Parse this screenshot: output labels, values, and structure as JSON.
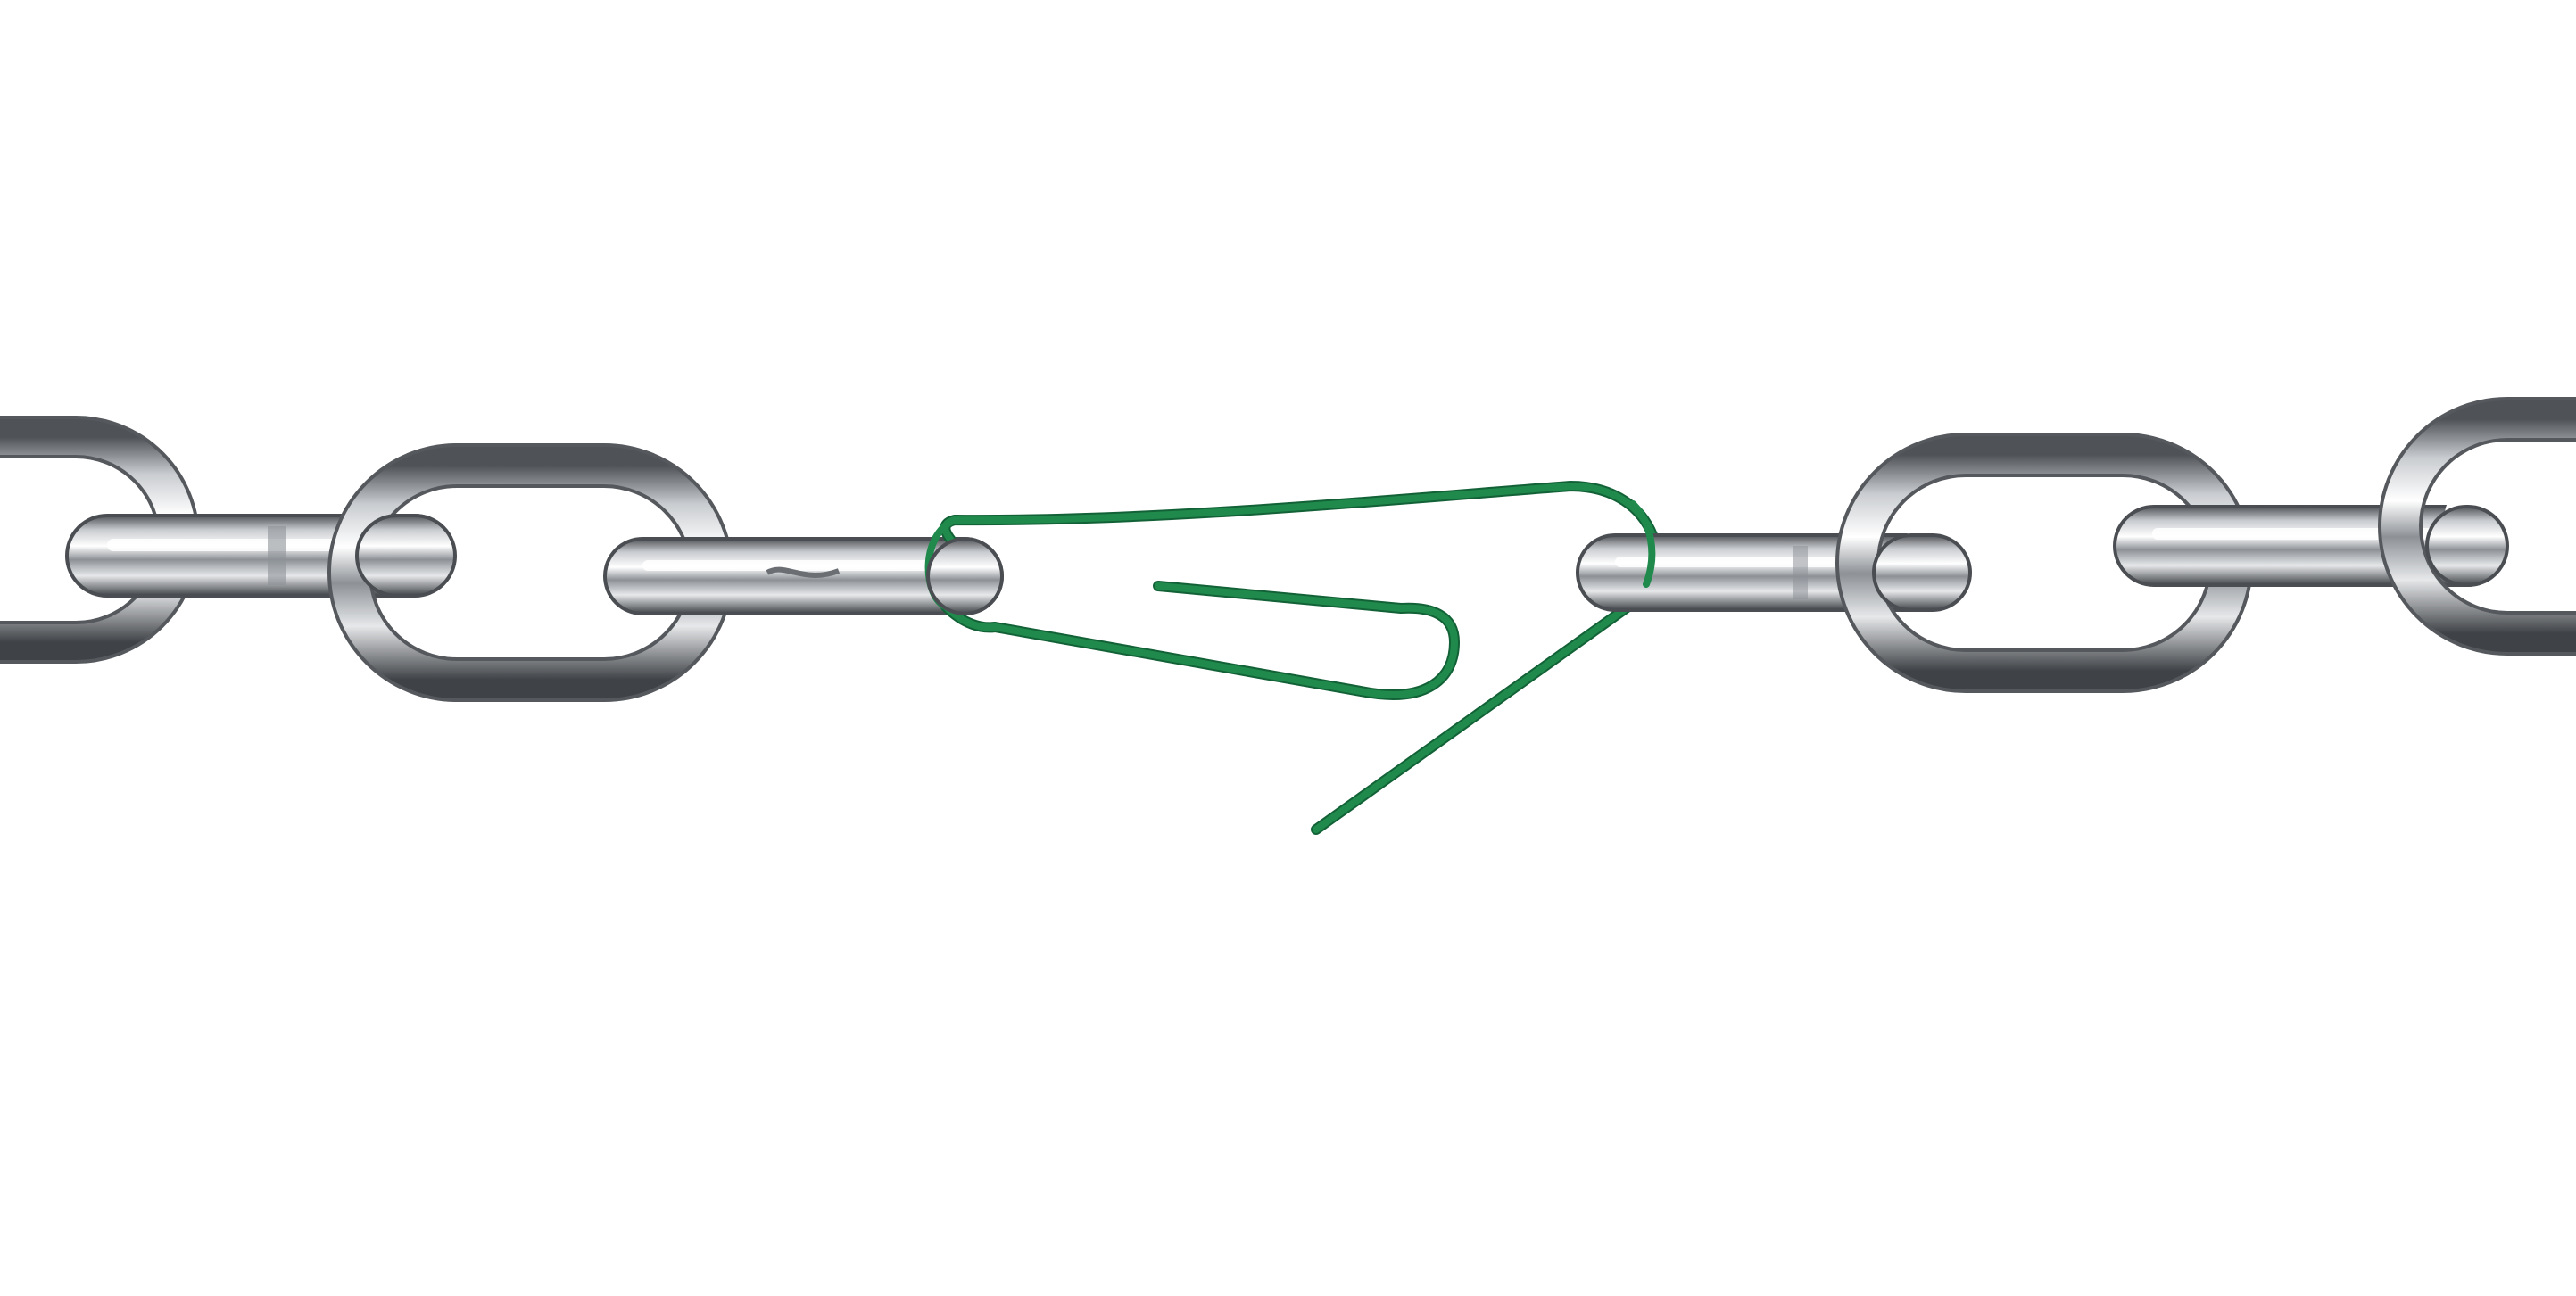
{
  "scene": {
    "subject": "chain-with-paperclip-link",
    "background_color": "#ffffff",
    "colors": {
      "metal_dark": "#5c5f63",
      "metal_mid": "#a8acb0",
      "metal_light": "#f2f3f4",
      "metal_highlight": "#ffffff",
      "paperclip": "#1f8a4c",
      "paperclip_dark": "#136237",
      "paperclip_light": "#3fb36e"
    }
  }
}
